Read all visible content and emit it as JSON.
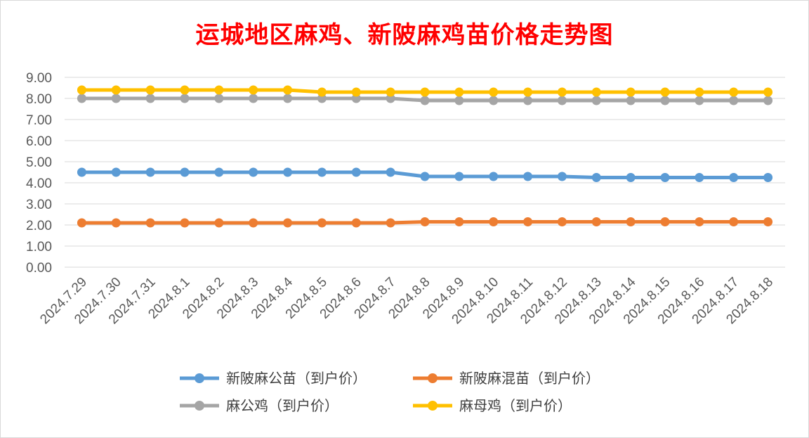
{
  "chart_data": {
    "type": "line",
    "title": "运城地区麻鸡、新陂麻鸡苗价格走势图",
    "xlabel": "",
    "ylabel": "",
    "ylim": [
      0,
      9
    ],
    "yticks": [
      "0.00",
      "1.00",
      "2.00",
      "3.00",
      "4.00",
      "5.00",
      "6.00",
      "7.00",
      "8.00",
      "9.00"
    ],
    "grid": true,
    "legend_position": "bottom",
    "categories": [
      "2024.7.29",
      "2024.7.30",
      "2024.7.31",
      "2024.8.1",
      "2024.8.2",
      "2024.8.3",
      "2024.8.4",
      "2024.8.5",
      "2024.8.6",
      "2024.8.7",
      "2024.8.8",
      "2024.8.9",
      "2024.8.10",
      "2024.8.11",
      "2024.8.12",
      "2024.8.13",
      "2024.8.14",
      "2024.8.15",
      "2024.8.16",
      "2024.8.17",
      "2024.8.18"
    ],
    "series": [
      {
        "name": "新陂麻公苗（到户价）",
        "color": "#5b9bd5",
        "values": [
          4.5,
          4.5,
          4.5,
          4.5,
          4.5,
          4.5,
          4.5,
          4.5,
          4.5,
          4.5,
          4.3,
          4.3,
          4.3,
          4.3,
          4.3,
          4.25,
          4.25,
          4.25,
          4.25,
          4.25,
          4.25
        ]
      },
      {
        "name": "新陂麻混苗（到户价）",
        "color": "#ed7d31",
        "values": [
          2.1,
          2.1,
          2.1,
          2.1,
          2.1,
          2.1,
          2.1,
          2.1,
          2.1,
          2.1,
          2.15,
          2.15,
          2.15,
          2.15,
          2.15,
          2.15,
          2.15,
          2.15,
          2.15,
          2.15,
          2.15
        ]
      },
      {
        "name": "麻公鸡（到户价）",
        "color": "#a5a5a5",
        "values": [
          8.0,
          8.0,
          8.0,
          8.0,
          8.0,
          8.0,
          8.0,
          8.0,
          8.0,
          8.0,
          7.9,
          7.9,
          7.9,
          7.9,
          7.9,
          7.9,
          7.9,
          7.9,
          7.9,
          7.9,
          7.9
        ]
      },
      {
        "name": "麻母鸡（到户价）",
        "color": "#ffc000",
        "values": [
          8.4,
          8.4,
          8.4,
          8.4,
          8.4,
          8.4,
          8.4,
          8.3,
          8.3,
          8.3,
          8.3,
          8.3,
          8.3,
          8.3,
          8.3,
          8.3,
          8.3,
          8.3,
          8.3,
          8.3,
          8.3
        ]
      }
    ]
  }
}
